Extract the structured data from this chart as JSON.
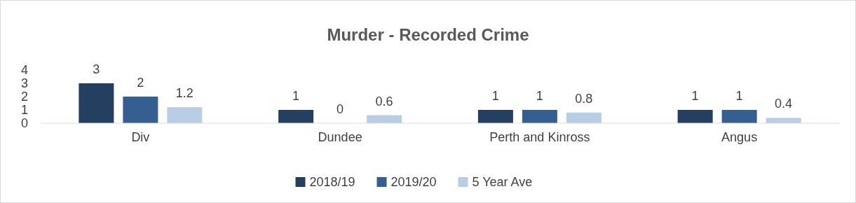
{
  "chart_data": {
    "type": "bar",
    "title": "Murder - Recorded Crime",
    "categories": [
      "Div",
      "Dundee",
      "Perth and Kinross",
      "Angus"
    ],
    "series": [
      {
        "name": "2018/19",
        "color": "#243f60",
        "values": [
          3,
          1,
          1,
          1
        ]
      },
      {
        "name": "2019/20",
        "color": "#355f91",
        "values": [
          2,
          0,
          1,
          1
        ]
      },
      {
        "name": "5 Year Ave",
        "color": "#b9cde5",
        "values": [
          1.2,
          0.6,
          0.8,
          0.4
        ]
      }
    ],
    "ylim": [
      0,
      4
    ],
    "yticks": [
      0,
      1,
      2,
      3,
      4
    ],
    "grid": false,
    "legend": "bottom",
    "data_labels": true
  }
}
